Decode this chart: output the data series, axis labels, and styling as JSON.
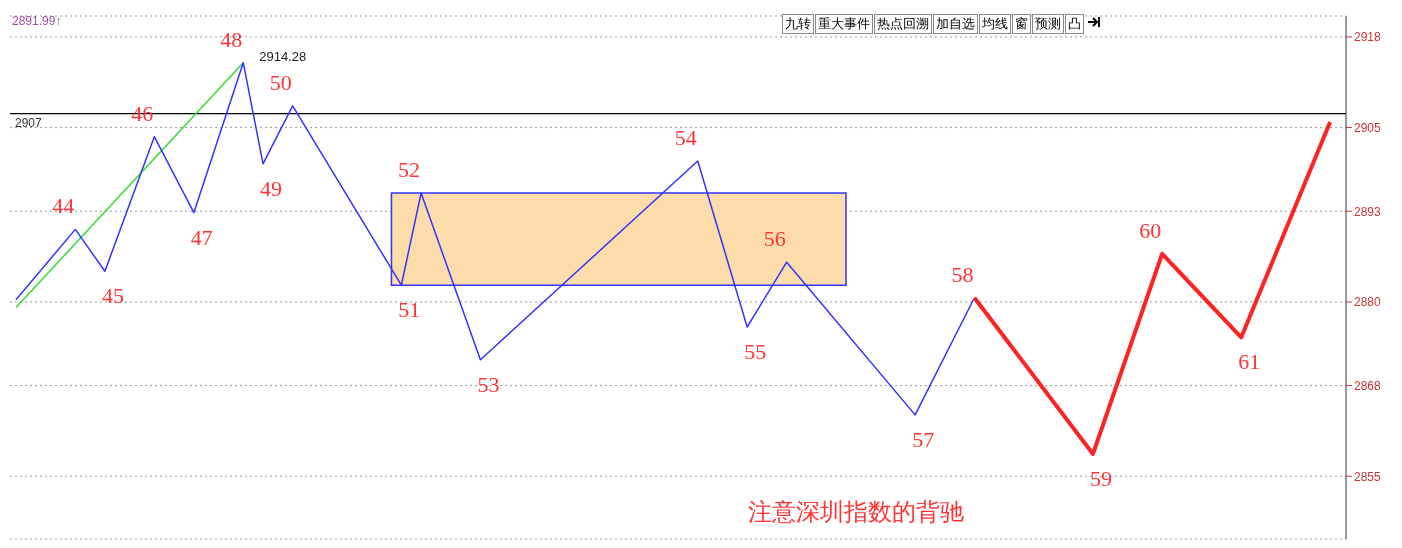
{
  "chart_data": {
    "type": "line",
    "categories": [
      null,
      null,
      null,
      null,
      null,
      null,
      null,
      null,
      null,
      null,
      null,
      null,
      null,
      null,
      null,
      null,
      null,
      null,
      null,
      null,
      null,
      null,
      null,
      null,
      null,
      null,
      null,
      null,
      null,
      null,
      null,
      null,
      null,
      null,
      null,
      null,
      null,
      null,
      null,
      null,
      null,
      null,
      null,
      null,
      null,
      null,
      null,
      null,
      null,
      null,
      null,
      null,
      null,
      null,
      null,
      null,
      null,
      null,
      null,
      null,
      null,
      null,
      null,
      null,
      null,
      null,
      null,
      null,
      null,
      null,
      null,
      null,
      null,
      null,
      null,
      null,
      null,
      null,
      null,
      null,
      null,
      null,
      null,
      null,
      null,
      null,
      null,
      null,
      null,
      null,
      null,
      null,
      null,
      null,
      null,
      null,
      null,
      null,
      null,
      null,
      null,
      null,
      null,
      null,
      null,
      null,
      null,
      null,
      null,
      null,
      null,
      null,
      null,
      null,
      null,
      null,
      null,
      null,
      null,
      null,
      null,
      null,
      null,
      null,
      null,
      null,
      null,
      null,
      null,
      null,
      null,
      null,
      null,
      null,
      null
    ],
    "series": [
      {
        "type": "area",
        "color": "#fcdcaa",
        "values": [
          null,
          null,
          null,
          null,
          null,
          null,
          null,
          null,
          null,
          null,
          null,
          null,
          null,
          null,
          null,
          null,
          null,
          null,
          null,
          null,
          null,
          null,
          null,
          null,
          null,
          null,
          null,
          null,
          null,
          null,
          null,
          null,
          null,
          null,
          null,
          null,
          null,
          null,
          null,
          null,
          null,
          null,
          null,
          null,
          null,
          null,
          null,
          null,
          null,
          null,
          null,
          null,
          null,
          null,
          null,
          null,
          null,
          null,
          null,
          null,
          null,
          null,
          null,
          null,
          null,
          null,
          null,
          null,
          null,
          null,
          null,
          null,
          null,
          null,
          null,
          null,
          null,
          null,
          null,
          null,
          null,
          null,
          null,
          null,
          null,
          null,
          null,
          null,
          null,
          null,
          null,
          null,
          null,
          null,
          null,
          null,
          null,
          null,
          null,
          null,
          null,
          null,
          null,
          null,
          null,
          null,
          null,
          null,
          null,
          null,
          null,
          null,
          null,
          null,
          null,
          null,
          null,
          null,
          null,
          null,
          null,
          null,
          null,
          null,
          null,
          null,
          null,
          null,
          null,
          null,
          null,
          null,
          null,
          null,
          null
        ],
        "lower": [
          null,
          null,
          null,
          null,
          null,
          null,
          null,
          null,
          null,
          null,
          null,
          null,
          null,
          null,
          null,
          null,
          null,
          null,
          null,
          null,
          null,
          null,
          null,
          null,
          null,
          null,
          null,
          null,
          null,
          null,
          null,
          null,
          null,
          null,
          null,
          null,
          null,
          null,
          2882.4,
          2882.4,
          2882.4,
          2882.4,
          2882.4,
          2882.4,
          2882.4,
          2882.4,
          2882.4,
          2882.4,
          2882.4,
          2882.4,
          2882.4,
          2882.4,
          2882.4,
          2882.4,
          2882.4,
          2882.4,
          2882.4,
          2882.4,
          2882.4,
          2882.4,
          2882.4,
          2882.4,
          2882.4,
          2882.4,
          2882.4,
          2882.4,
          2882.4,
          2882.4,
          2882.4,
          2882.4,
          2882.4,
          2882.4,
          2882.4,
          2882.4,
          2882.4,
          2882.4,
          2882.4,
          2882.4,
          2882.4,
          2882.4,
          2882.4,
          2882.4,
          2882.4,
          2882.4,
          2882.4,
          null,
          null,
          null,
          null,
          null,
          null,
          null,
          null,
          null,
          null,
          null,
          null,
          null,
          null,
          null,
          null,
          null,
          null,
          null,
          null,
          null,
          null,
          null,
          null,
          null,
          null,
          null,
          null,
          null,
          null,
          null,
          null,
          null,
          null,
          null,
          null,
          null,
          null,
          null,
          null,
          null,
          null,
          null,
          null,
          null,
          null,
          null,
          null,
          null,
          null
        ],
        "upper": [
          null,
          null,
          null,
          null,
          null,
          null,
          null,
          null,
          null,
          null,
          null,
          null,
          null,
          null,
          null,
          null,
          null,
          null,
          null,
          null,
          null,
          null,
          null,
          null,
          null,
          null,
          null,
          null,
          null,
          null,
          null,
          null,
          null,
          null,
          null,
          null,
          null,
          null,
          2895.6,
          2895.6,
          2895.6,
          2895.6,
          2895.6,
          2895.6,
          2895.6,
          2895.6,
          2895.6,
          2895.6,
          2895.6,
          2895.6,
          2895.6,
          2895.6,
          2895.6,
          2895.6,
          2895.6,
          2895.6,
          2895.6,
          2895.6,
          2895.6,
          2895.6,
          2895.6,
          2895.6,
          2895.6,
          2895.6,
          2895.6,
          2895.6,
          2895.6,
          2895.6,
          2895.6,
          2895.6,
          2895.6,
          2895.6,
          2895.6,
          2895.6,
          2895.6,
          2895.6,
          2895.6,
          2895.6,
          2895.6,
          2895.6,
          2895.6,
          2895.6,
          2895.6,
          2895.6,
          2895.6,
          null,
          null,
          null,
          null,
          null,
          null,
          null,
          null,
          null,
          null,
          null,
          null,
          null,
          null,
          null,
          null,
          null,
          null,
          null,
          null,
          null,
          null,
          null,
          null,
          null,
          null,
          null,
          null,
          null,
          null,
          null,
          null,
          null,
          null,
          null,
          null,
          null,
          null,
          null,
          null,
          null,
          null,
          null,
          null,
          null,
          null,
          null,
          null,
          null,
          null
        ]
      },
      {
        "color": "#33dd33",
        "values": [
          2879.2,
          null,
          null,
          null,
          null,
          null,
          null,
          null,
          null,
          null,
          null,
          null,
          null,
          null,
          null,
          null,
          null,
          null,
          null,
          null,
          null,
          null,
          null,
          2914.3,
          null,
          null,
          null,
          null,
          null,
          null,
          null,
          null,
          null,
          null,
          null,
          null,
          null,
          null,
          null,
          null,
          null,
          null,
          null,
          null,
          null,
          null,
          null,
          null,
          null,
          null,
          null,
          null,
          null,
          null,
          null,
          null,
          null,
          null,
          null,
          null,
          null,
          null,
          null,
          null,
          null,
          null,
          null,
          null,
          null,
          null,
          null,
          null,
          null,
          null,
          null,
          null,
          null,
          null,
          null,
          null,
          null,
          null,
          null,
          null,
          null,
          null,
          null,
          null,
          null,
          null,
          null,
          null,
          null,
          null,
          null,
          null,
          null,
          null,
          null,
          null,
          null,
          null,
          null,
          null,
          null,
          null,
          null,
          null,
          null,
          null,
          null,
          null,
          null,
          null,
          null,
          null,
          null,
          null,
          null,
          null,
          null,
          null,
          null,
          null,
          null,
          null,
          null,
          null,
          null,
          null,
          null,
          null,
          null,
          null,
          null
        ]
      },
      {
        "color": "#3333ff",
        "values": [
          2880.3,
          null,
          null,
          null,
          null,
          null,
          2890.4,
          null,
          null,
          2884.4,
          null,
          null,
          null,
          null,
          2903.7,
          null,
          null,
          null,
          2892.8,
          null,
          null,
          null,
          null,
          2914.3,
          null,
          2899.8,
          null,
          null,
          2908.1,
          null,
          null,
          null,
          null,
          null,
          null,
          null,
          null,
          null,
          null,
          2882.4,
          null,
          2895.6,
          null,
          null,
          null,
          null,
          null,
          2871.7,
          null,
          null,
          null,
          null,
          null,
          null,
          null,
          null,
          null,
          null,
          null,
          null,
          null,
          null,
          null,
          null,
          null,
          null,
          null,
          null,
          null,
          2900.2,
          null,
          null,
          null,
          null,
          2876.4,
          null,
          null,
          null,
          2885.7,
          null,
          null,
          null,
          null,
          null,
          null,
          null,
          null,
          null,
          null,
          null,
          null,
          2863.8,
          null,
          null,
          null,
          null,
          null,
          2880.6,
          null,
          null,
          null,
          null,
          null,
          null,
          null,
          null,
          null,
          null,
          null,
          null,
          null,
          null,
          null,
          null,
          null,
          null,
          null,
          null,
          null,
          null,
          null,
          null,
          null,
          null,
          null,
          null,
          null,
          null,
          null,
          null,
          null,
          null,
          null,
          null,
          null
        ]
      },
      {
        "color": "#ff2222",
        "values": [
          null,
          null,
          null,
          null,
          null,
          null,
          null,
          null,
          null,
          null,
          null,
          null,
          null,
          null,
          null,
          null,
          null,
          null,
          null,
          null,
          null,
          null,
          null,
          null,
          null,
          null,
          null,
          null,
          null,
          null,
          null,
          null,
          null,
          null,
          null,
          null,
          null,
          null,
          null,
          null,
          null,
          null,
          null,
          null,
          null,
          null,
          null,
          null,
          null,
          null,
          null,
          null,
          null,
          null,
          null,
          null,
          null,
          null,
          null,
          null,
          null,
          null,
          null,
          null,
          null,
          null,
          null,
          null,
          null,
          null,
          null,
          null,
          null,
          null,
          null,
          null,
          null,
          null,
          null,
          null,
          null,
          null,
          null,
          null,
          null,
          null,
          null,
          null,
          null,
          null,
          null,
          null,
          null,
          null,
          null,
          null,
          null,
          2880.6,
          null,
          null,
          null,
          null,
          null,
          null,
          null,
          null,
          null,
          null,
          null,
          2858.2,
          null,
          null,
          null,
          null,
          null,
          null,
          2886.9,
          null,
          null,
          null,
          null,
          null,
          null,
          null,
          2874.9,
          null,
          null,
          null,
          null,
          null,
          null,
          null,
          null,
          2905.8,
          null
        ]
      }
    ],
    "ylim": [
      2846,
      2921
    ],
    "yticks": [
      2855,
      2868,
      2880,
      2893,
      2905,
      2918
    ],
    "grid": "y",
    "tick_labels": "y",
    "marker": "none",
    "ref_lines": [
      {
        "axis": "y",
        "value": 2907,
        "label": "2907",
        "color": "#000000"
      }
    ],
    "annotations": [
      "2891.99↑",
      "九转",
      "重大事件",
      "热点回溯",
      "加自选",
      "均线",
      "窗",
      "预测",
      "凸",
      "注意深圳指数的背驰",
      "2914.28",
      "44",
      "45",
      "46",
      "47",
      "48",
      "49",
      "50",
      "51",
      "52",
      "53",
      "54",
      "55",
      "56",
      "57",
      "58",
      "59",
      "60",
      "61"
    ]
  }
}
